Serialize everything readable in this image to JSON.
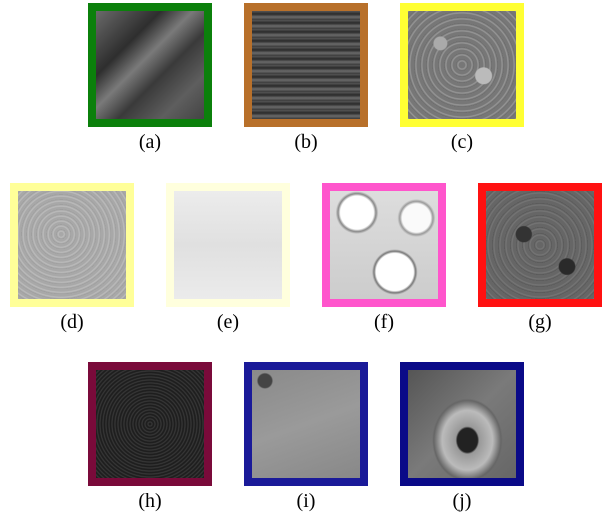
{
  "figure": {
    "panels": [
      {
        "label": "(a)",
        "color": "#0b800b"
      },
      {
        "label": "(b)",
        "color": "#b8702a"
      },
      {
        "label": "(c)",
        "color": "#ffff33"
      },
      {
        "label": "(d)",
        "color": "#ffff99"
      },
      {
        "label": "(e)",
        "color": "#ffffdd"
      },
      {
        "label": "(f)",
        "color": "#ff55cc"
      },
      {
        "label": "(g)",
        "color": "#ff1111"
      },
      {
        "label": "(h)",
        "color": "#7a0a3a"
      },
      {
        "label": "(i)",
        "color": "#1a1a99"
      },
      {
        "label": "(j)",
        "color": "#0a0a88"
      }
    ]
  }
}
